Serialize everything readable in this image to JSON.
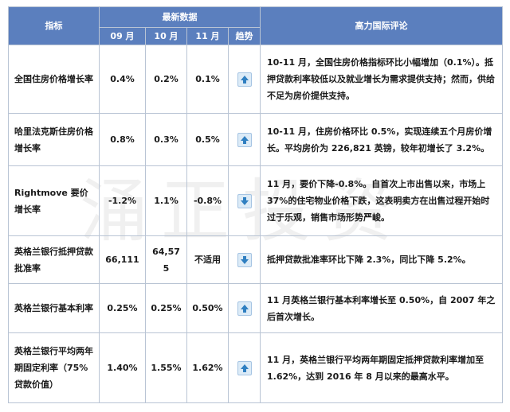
{
  "header": {
    "indicator": "指标",
    "latest_data": "最新数据",
    "commentary": "高力国际评论",
    "months": [
      "09 月",
      "10 月",
      "11 月"
    ],
    "trend": "趋势"
  },
  "rows": [
    {
      "label": "全国住房价格增长率",
      "sep": "0.4%",
      "oct": "0.2%",
      "nov": "0.1%",
      "trend": "up",
      "comment": "10-11 月，全国住房价格指标环比小幅增加（0.1%）。抵押贷款利率较低以及就业增长为需求提供支持；然而，供给不足为房价提供支持。"
    },
    {
      "label": "哈里法克斯住房价格增长率",
      "sep": "0.8%",
      "oct": "0.3%",
      "nov": "0.5%",
      "trend": "up",
      "comment": "10-11 月，住房价格环比 0.5%，实现连续五个月房价增长。平均房价为 226,821 英镑，较年初增长了 3.2%。"
    },
    {
      "label": "Rightmove 要价增长率",
      "sep": "-1.2%",
      "oct": "1.1%",
      "nov": "-0.8%",
      "trend": "down",
      "comment": "11 月，要价下降-0.8%。自首次上市出售以来，市场上 37%的住宅物业价格下跌，这表明卖方在出售过程开始时过于乐观，销售市场形势严峻。"
    },
    {
      "label": "英格兰银行抵押贷款批准率",
      "sep": "66,111",
      "oct": "64,575",
      "nov": "不适用",
      "trend": "down",
      "comment": "抵押贷款批准率环比下降 2.3%，同比下降 5.2%。"
    },
    {
      "label": "英格兰银行基本利率",
      "sep": "0.25%",
      "oct": "0.25%",
      "nov": "0.50%",
      "trend": "up",
      "comment": "11 月英格兰银行基本利率增长至 0.50%，自 2007 年之后首次增长。"
    },
    {
      "label": "英格兰银行平均两年期固定利率（75%贷款价值）",
      "sep": "1.40%",
      "oct": "1.55%",
      "nov": "1.62%",
      "trend": "up",
      "comment": "11 月，英格兰银行平均两年期固定抵押贷款利率增加至 1.62%，达到 2016 年 8 月以来的最高水平。"
    }
  ],
  "watermark": "涌正投资",
  "colors": {
    "header_bg": "#5b7fbe",
    "border": "#b9c4d4",
    "arrow_up": "#2f7fc1",
    "arrow_down": "#2f7fc1"
  }
}
